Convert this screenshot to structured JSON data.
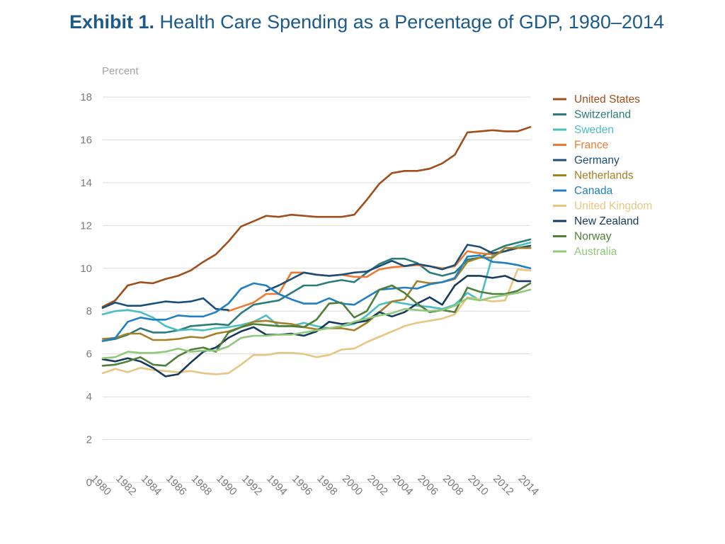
{
  "title": {
    "lead": "Exhibit 1.",
    "text": " Health Care Spending as a Percentage of GDP, 1980–2014"
  },
  "chart_data": {
    "type": "line",
    "ylabel": "Percent",
    "xlabel": "",
    "ylim": [
      0,
      18
    ],
    "yticks": [
      0,
      2,
      4,
      6,
      8,
      10,
      12,
      14,
      16,
      18
    ],
    "xlim": [
      1980,
      2014
    ],
    "xticks": [
      1980,
      1982,
      1984,
      1986,
      1988,
      1990,
      1992,
      1994,
      1996,
      1998,
      2000,
      2002,
      2004,
      2006,
      2008,
      2010,
      2012,
      2014
    ],
    "grid": "horizontal",
    "legend": "right",
    "series": [
      {
        "name": "United States",
        "color": "#a04e1b",
        "start": 1980,
        "values": [
          8.2,
          8.5,
          9.2,
          9.35,
          9.3,
          9.5,
          9.65,
          9.9,
          10.3,
          10.65,
          11.25,
          11.95,
          12.2,
          12.45,
          12.4,
          12.5,
          12.45,
          12.4,
          12.4,
          12.4,
          12.5,
          13.2,
          13.95,
          14.45,
          14.55,
          14.55,
          14.65,
          14.9,
          15.3,
          16.35,
          16.4,
          16.45,
          16.4,
          16.4,
          16.6
        ]
      },
      {
        "name": "Switzerland",
        "color": "#2b7b79",
        "start": 1980,
        "values": [
          6.6,
          6.7,
          6.9,
          7.2,
          7.0,
          7.0,
          7.1,
          7.3,
          7.35,
          7.4,
          7.35,
          7.9,
          8.3,
          8.4,
          8.5,
          8.85,
          9.2,
          9.2,
          9.35,
          9.45,
          9.35,
          9.8,
          10.2,
          10.45,
          10.45,
          10.25,
          9.8,
          9.65,
          9.8,
          10.4,
          10.5,
          10.8,
          11.05,
          11.2,
          11.35
        ]
      },
      {
        "name": "Sweden",
        "color": "#4bbfc0",
        "start": 1980,
        "values": [
          7.85,
          8.0,
          8.05,
          7.95,
          7.7,
          7.3,
          7.1,
          7.15,
          7.1,
          7.2,
          7.25,
          7.35,
          7.5,
          7.8,
          7.3,
          7.3,
          7.45,
          7.3,
          7.2,
          7.3,
          7.4,
          7.8,
          8.3,
          8.45,
          8.35,
          8.25,
          8.2,
          8.1,
          8.3,
          8.85,
          8.5,
          10.6,
          10.8,
          11.05,
          11.2
        ]
      },
      {
        "name": "France",
        "color": "#ee7a31",
        "start": 1990,
        "values": [
          8.0,
          8.2,
          8.4,
          8.8,
          8.8,
          9.8,
          9.8,
          9.7,
          9.65,
          9.7,
          9.6,
          9.6,
          9.95,
          10.05,
          10.1,
          10.15,
          10.1,
          10.0,
          10.1,
          10.8,
          10.7,
          10.65,
          10.8,
          10.95,
          10.95
        ]
      },
      {
        "name": "Germany",
        "color": "#1b4f78",
        "start": 1980,
        "values": [
          8.15,
          8.4,
          8.25,
          8.25,
          8.35,
          8.45,
          8.4,
          8.45,
          8.6,
          8.1,
          8.05,
          null,
          null,
          8.95,
          9.2,
          9.5,
          9.8,
          9.7,
          9.65,
          9.7,
          9.8,
          9.85,
          10.1,
          10.35,
          10.1,
          10.2,
          10.1,
          9.95,
          10.15,
          11.1,
          11.0,
          10.7,
          10.8,
          10.95,
          11.05
        ]
      },
      {
        "name": "Netherlands",
        "color": "#a57f25",
        "start": 1980,
        "values": [
          6.7,
          6.75,
          6.95,
          6.95,
          6.65,
          6.65,
          6.7,
          6.8,
          6.75,
          6.95,
          7.05,
          7.25,
          7.5,
          7.55,
          7.45,
          7.4,
          7.25,
          7.15,
          7.2,
          7.2,
          7.1,
          7.45,
          7.95,
          8.45,
          8.55,
          9.4,
          9.3,
          9.35,
          9.5,
          10.3,
          10.5,
          10.5,
          10.95,
          10.95,
          10.95
        ]
      },
      {
        "name": "Canada",
        "color": "#1f80c3",
        "start": 1980,
        "values": [
          6.6,
          6.75,
          7.5,
          7.7,
          7.6,
          7.6,
          7.8,
          7.75,
          7.75,
          7.95,
          8.35,
          9.05,
          9.3,
          9.2,
          8.8,
          8.55,
          8.35,
          8.35,
          8.6,
          8.35,
          8.3,
          8.65,
          9.0,
          9.05,
          9.1,
          9.05,
          9.25,
          9.35,
          9.55,
          10.55,
          10.6,
          10.3,
          10.25,
          10.15,
          10.0
        ]
      },
      {
        "name": "United Kingdom",
        "color": "#e7c683",
        "start": 1980,
        "values": [
          5.1,
          5.3,
          5.15,
          5.35,
          5.25,
          5.2,
          5.15,
          5.2,
          5.1,
          5.05,
          5.1,
          5.5,
          5.95,
          5.95,
          6.05,
          6.05,
          6.0,
          5.85,
          5.95,
          6.2,
          6.25,
          6.55,
          6.8,
          7.05,
          7.3,
          7.45,
          7.55,
          7.65,
          7.85,
          8.65,
          8.55,
          8.45,
          8.5,
          9.95,
          9.9
        ]
      },
      {
        "name": "New Zealand",
        "color": "#163a5c",
        "start": 1980,
        "values": [
          5.75,
          5.65,
          5.8,
          5.65,
          5.35,
          4.95,
          5.05,
          5.6,
          6.1,
          6.3,
          6.75,
          7.05,
          7.25,
          6.9,
          6.9,
          6.95,
          6.85,
          7.05,
          7.5,
          7.4,
          7.45,
          7.55,
          7.95,
          7.75,
          7.95,
          8.35,
          8.65,
          8.3,
          9.2,
          9.65,
          9.65,
          9.55,
          9.65,
          9.4,
          9.4
        ]
      },
      {
        "name": "Norway",
        "color": "#4e7f3b",
        "start": 1980,
        "values": [
          5.45,
          5.5,
          5.65,
          5.85,
          5.5,
          5.45,
          5.9,
          6.2,
          6.3,
          6.1,
          7.0,
          7.25,
          7.4,
          7.35,
          7.3,
          7.3,
          7.25,
          7.6,
          8.35,
          8.4,
          7.7,
          8.0,
          9.0,
          9.2,
          8.85,
          8.35,
          7.95,
          8.05,
          7.95,
          9.1,
          8.9,
          8.8,
          8.8,
          8.95,
          9.3
        ]
      },
      {
        "name": "Australia",
        "color": "#8fc979",
        "start": 1980,
        "values": [
          5.8,
          5.85,
          6.1,
          6.05,
          6.05,
          6.1,
          6.25,
          6.1,
          6.15,
          6.15,
          6.35,
          6.75,
          6.85,
          6.85,
          6.9,
          6.9,
          7.0,
          7.1,
          7.2,
          7.3,
          7.5,
          7.65,
          7.8,
          7.9,
          8.1,
          8.05,
          8.0,
          8.05,
          8.25,
          8.6,
          8.5,
          8.65,
          8.75,
          8.85,
          9.0
        ]
      }
    ]
  }
}
